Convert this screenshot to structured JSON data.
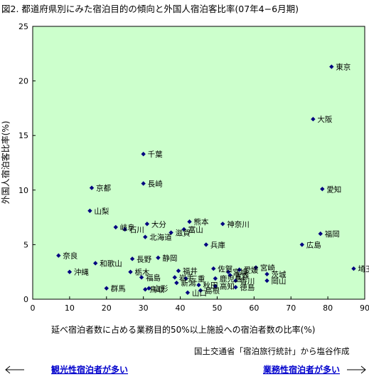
{
  "chart_data": {
    "type": "scatter",
    "title": "図2. 都道府県別にみた宿泊目的の傾向と外国人宿泊客比率(07年4−6月期)",
    "xlabel": "延べ宿泊者数に占める業務目的50%以上施設への宿泊者数の比率(%)",
    "ylabel": "外国人宿泊客比率(%)",
    "xlim": [
      0,
      90
    ],
    "ylim": [
      0,
      25
    ],
    "xticks": [
      0,
      10,
      20,
      30,
      40,
      50,
      60,
      70,
      80,
      90
    ],
    "yticks": [
      0,
      5,
      10,
      15,
      20,
      25
    ],
    "grid": false,
    "marker_color": "#000080",
    "plot_background": "#ccffcc",
    "source": "国土交通省「宿泊旅行統計」から塩谷作成",
    "arrow_left": "観光性宿泊者が多い",
    "arrow_right": "業務性宿泊者が多い",
    "points": [
      {
        "label": "東京",
        "x": 81.0,
        "y": 21.3
      },
      {
        "label": "大阪",
        "x": 76.0,
        "y": 16.5
      },
      {
        "label": "千葉",
        "x": 30.0,
        "y": 13.3
      },
      {
        "label": "長崎",
        "x": 30.0,
        "y": 10.6
      },
      {
        "label": "京都",
        "x": 16.0,
        "y": 10.2
      },
      {
        "label": "愛知",
        "x": 78.5,
        "y": 10.1
      },
      {
        "label": "山梨",
        "x": 15.5,
        "y": 8.1
      },
      {
        "label": "熊本",
        "x": 42.5,
        "y": 7.1
      },
      {
        "label": "神奈川",
        "x": 51.5,
        "y": 6.9
      },
      {
        "label": "大分",
        "x": 31.0,
        "y": 6.9
      },
      {
        "label": "岐阜",
        "x": 22.5,
        "y": 6.6
      },
      {
        "label": "石川",
        "x": 25.0,
        "y": 6.4
      },
      {
        "label": "富山",
        "x": 41.0,
        "y": 6.4
      },
      {
        "label": "滋賀",
        "x": 37.5,
        "y": 6.1
      },
      {
        "label": "北海道",
        "x": 30.5,
        "y": 5.7
      },
      {
        "label": "福岡",
        "x": 78.0,
        "y": 6.0
      },
      {
        "label": "兵庫",
        "x": 47.0,
        "y": 5.0
      },
      {
        "label": "広島",
        "x": 73.0,
        "y": 5.0
      },
      {
        "label": "奈良",
        "x": 7.0,
        "y": 4.0
      },
      {
        "label": "長野",
        "x": 27.0,
        "y": 3.7
      },
      {
        "label": "静岡",
        "x": 34.0,
        "y": 3.8
      },
      {
        "label": "和歌山",
        "x": 17.0,
        "y": 3.3
      },
      {
        "label": "埼玉",
        "x": 87.0,
        "y": 2.8
      },
      {
        "label": "宮崎",
        "x": 60.5,
        "y": 2.9
      },
      {
        "label": "愛媛",
        "x": 56.0,
        "y": 2.7
      },
      {
        "label": "佐賀",
        "x": 49.0,
        "y": 2.8
      },
      {
        "label": "宮城",
        "x": 53.0,
        "y": 2.5
      },
      {
        "label": "福井",
        "x": 39.5,
        "y": 2.6
      },
      {
        "label": "栃木",
        "x": 26.5,
        "y": 2.5
      },
      {
        "label": "沖縄",
        "x": 10.0,
        "y": 2.5
      },
      {
        "label": "茨城",
        "x": 63.5,
        "y": 2.3
      },
      {
        "label": "青森",
        "x": 53.5,
        "y": 2.2
      },
      {
        "label": "岩手",
        "x": 38.5,
        "y": 2.0
      },
      {
        "label": "三重",
        "x": 41.5,
        "y": 1.9
      },
      {
        "label": "福島",
        "x": 29.5,
        "y": 2.0
      },
      {
        "label": "鹿児島",
        "x": 49.5,
        "y": 1.9
      },
      {
        "label": "香川",
        "x": 55.0,
        "y": 1.7
      },
      {
        "label": "岡山",
        "x": 63.5,
        "y": 1.7
      },
      {
        "label": "新潟",
        "x": 39.0,
        "y": 1.5
      },
      {
        "label": "秋田",
        "x": 45.0,
        "y": 1.3
      },
      {
        "label": "高知",
        "x": 49.5,
        "y": 1.2
      },
      {
        "label": "徳島",
        "x": 55.0,
        "y": 1.1
      },
      {
        "label": "群馬",
        "x": 20.0,
        "y": 1.0
      },
      {
        "label": "山形",
        "x": 31.5,
        "y": 1.0
      },
      {
        "label": "鳥取",
        "x": 30.5,
        "y": 0.9
      },
      {
        "label": "島根",
        "x": 45.5,
        "y": 0.8
      },
      {
        "label": "山口",
        "x": 42.0,
        "y": 0.6
      }
    ]
  }
}
